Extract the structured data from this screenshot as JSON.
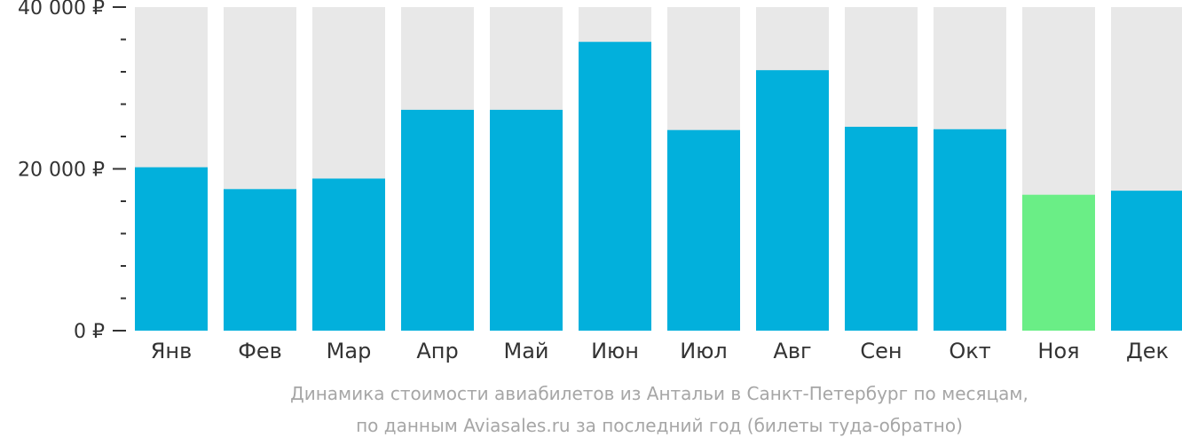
{
  "chart_data": {
    "type": "bar",
    "categories": [
      "Янв",
      "Фев",
      "Мар",
      "Апр",
      "Май",
      "Июн",
      "Июл",
      "Авг",
      "Сен",
      "Окт",
      "Ноя",
      "Дек"
    ],
    "values": [
      20200,
      17500,
      18800,
      27300,
      27300,
      35700,
      24800,
      32200,
      25200,
      24900,
      16800,
      17300
    ],
    "ylim": [
      0,
      40000
    ],
    "y_ticks": [
      {
        "value": 0,
        "label": "0 ₽"
      },
      {
        "value": 20000,
        "label": "20 000 ₽"
      },
      {
        "value": 40000,
        "label": "40 000 ₽"
      }
    ],
    "minor_tick_step": 4000,
    "highlight_index": 10,
    "colors": {
      "bar": "#02b0dc",
      "highlight": "#6aee86",
      "background_bar": "#e8e8e8",
      "axis_text": "#333333",
      "caption_text": "#a6a6a6"
    }
  },
  "caption": {
    "line1": "Динамика стоимости авиабилетов из Антальи в Санкт-Петербург по месяцам,",
    "line2": "по данным Aviasales.ru за последний год (билеты туда-обратно)"
  }
}
